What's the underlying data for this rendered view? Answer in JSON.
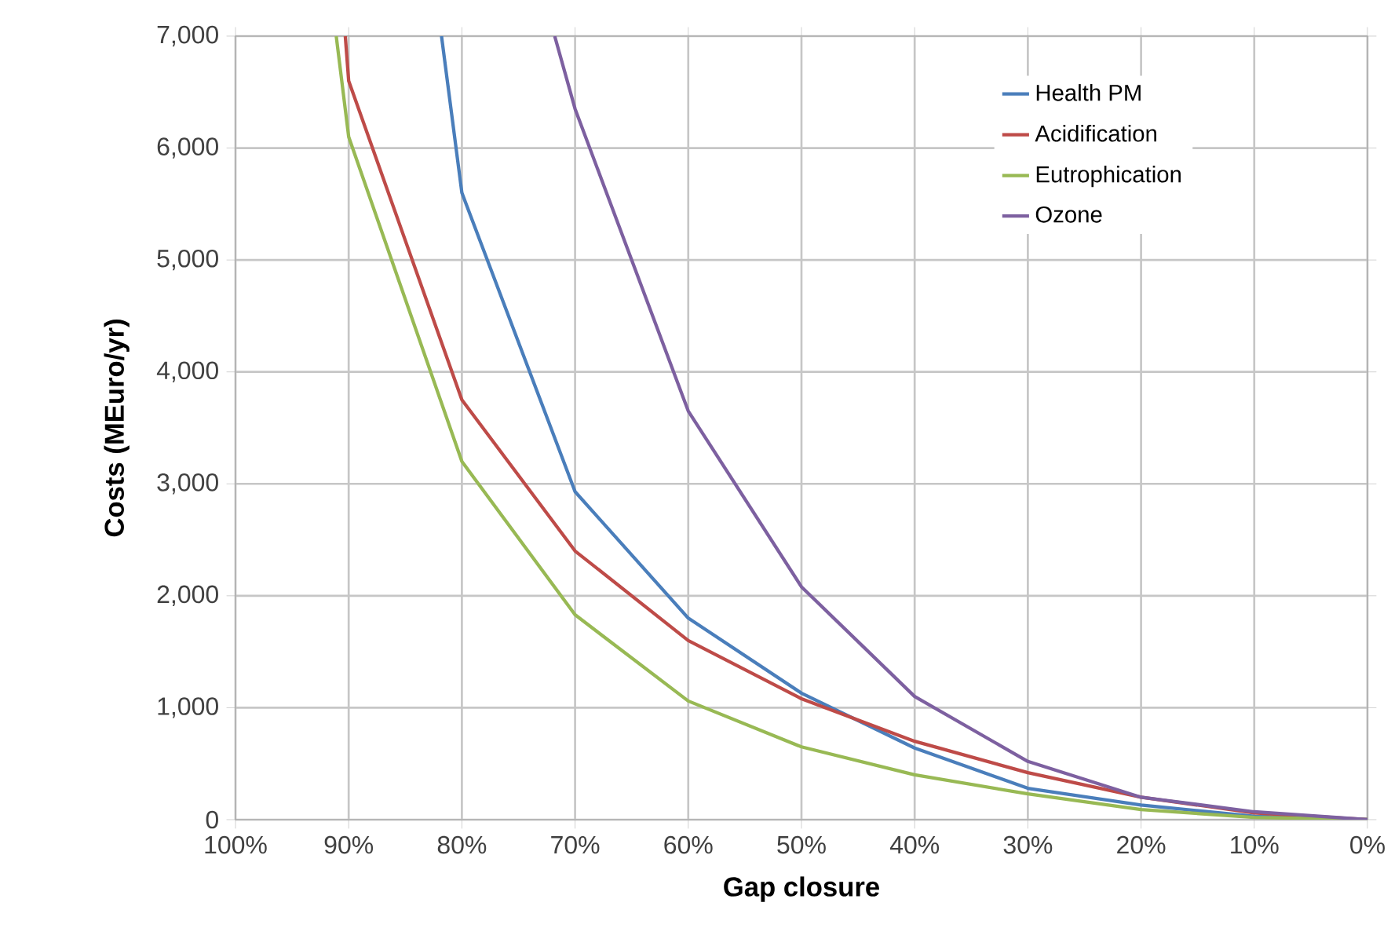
{
  "chart_data": {
    "type": "line",
    "xlabel": "Gap closure",
    "ylabel": "Costs (MEuro/yr)",
    "xlim": [
      100,
      0
    ],
    "xticks": [
      {
        "value": 100,
        "label": "100%"
      },
      {
        "value": 90,
        "label": "90%"
      },
      {
        "value": 80,
        "label": "80%"
      },
      {
        "value": 70,
        "label": "70%"
      },
      {
        "value": 60,
        "label": "60%"
      },
      {
        "value": 50,
        "label": "50%"
      },
      {
        "value": 40,
        "label": "40%"
      },
      {
        "value": 30,
        "label": "30%"
      },
      {
        "value": 20,
        "label": "20%"
      },
      {
        "value": 10,
        "label": "10%"
      },
      {
        "value": 0,
        "label": "0%"
      }
    ],
    "ylim": [
      0,
      7000
    ],
    "yticks": [
      {
        "value": 0,
        "label": "0"
      },
      {
        "value": 1000,
        "label": "1,000"
      },
      {
        "value": 2000,
        "label": "2,000"
      },
      {
        "value": 3000,
        "label": "3,000"
      },
      {
        "value": 4000,
        "label": "4,000"
      },
      {
        "value": 5000,
        "label": "5,000"
      },
      {
        "value": 6000,
        "label": "6,000"
      },
      {
        "value": 7000,
        "label": "7,000"
      }
    ],
    "grid": true,
    "legend": "top right",
    "marker": "none",
    "line_style": "solid",
    "series": [
      {
        "name": "Health PM",
        "color": "#4a7ebb",
        "x": [
          81.8,
          80,
          70,
          60,
          50,
          40,
          30,
          20,
          10,
          0
        ],
        "values": [
          7000,
          5600,
          2930,
          1800,
          1130,
          640,
          280,
          130,
          30,
          0
        ]
      },
      {
        "name": "Acidification",
        "color": "#be4b48",
        "x": [
          90.3,
          90,
          80,
          70,
          60,
          50,
          40,
          30,
          20,
          10,
          0
        ],
        "values": [
          7000,
          6600,
          3750,
          2400,
          1600,
          1080,
          700,
          420,
          200,
          60,
          0
        ]
      },
      {
        "name": "Eutrophication",
        "color": "#98b954",
        "x": [
          91.1,
          90,
          80,
          70,
          60,
          50,
          40,
          30,
          20,
          10,
          0
        ],
        "values": [
          7000,
          6100,
          3200,
          1830,
          1060,
          650,
          400,
          230,
          90,
          20,
          0
        ]
      },
      {
        "name": "Ozone",
        "color": "#7d60a0",
        "x": [
          71.8,
          70,
          60,
          50,
          40,
          30,
          20,
          10,
          0
        ],
        "values": [
          7000,
          6350,
          3650,
          2080,
          1100,
          520,
          200,
          70,
          0
        ]
      }
    ]
  }
}
